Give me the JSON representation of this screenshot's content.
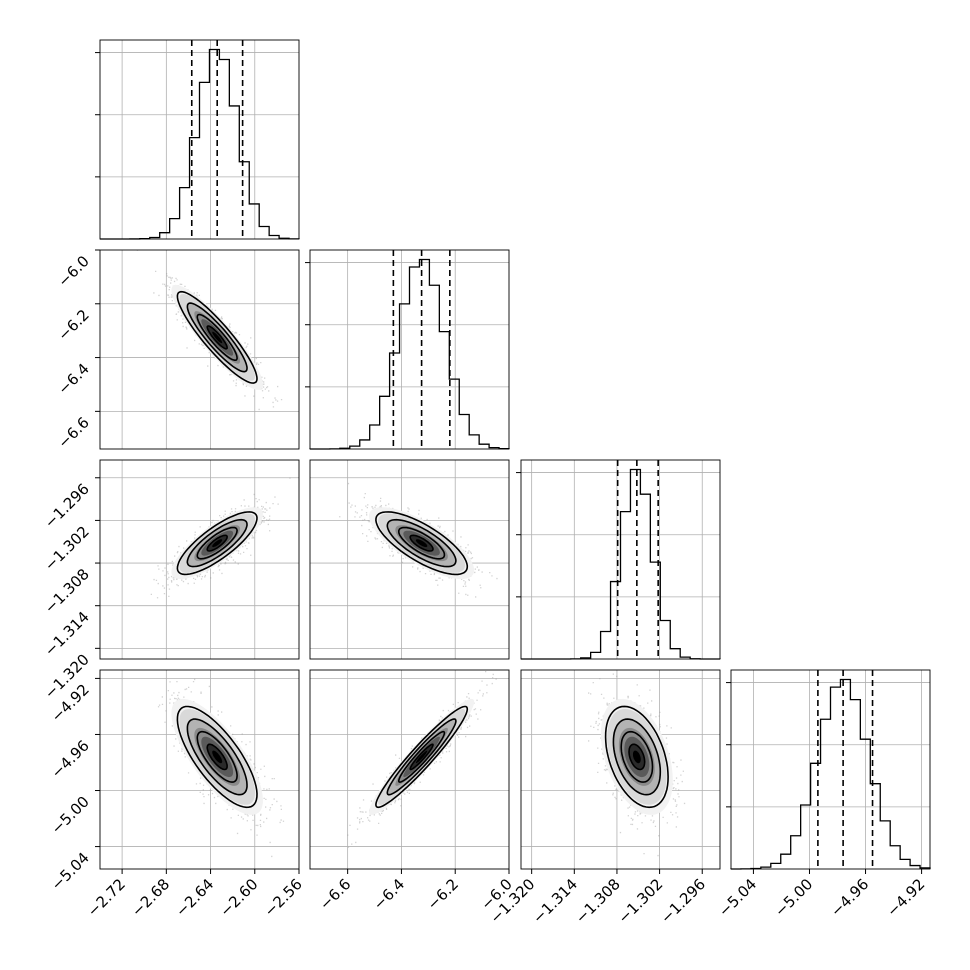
{
  "chart_data": {
    "type": "corner",
    "parameters": [
      {
        "index": 0,
        "label": "",
        "range": [
          -2.74,
          -2.56
        ],
        "ticks": [
          "-2.72",
          "-2.68",
          "-2.64",
          "-2.60",
          "-2.56"
        ],
        "tick_values": [
          -2.72,
          -2.68,
          -2.64,
          -2.6,
          -2.56
        ],
        "mean": -2.634,
        "sd": 0.018,
        "quantiles": [
          -2.657,
          -2.634,
          -2.611
        ]
      },
      {
        "index": 1,
        "label": "",
        "range": [
          -6.74,
          -6.0
        ],
        "ticks": [
          "-6.6",
          "-6.4",
          "-6.2",
          "-6.0"
        ],
        "tick_values": [
          -6.6,
          -6.4,
          -6.2,
          -6.0
        ],
        "mean": -6.325,
        "sd": 0.085,
        "quantiles": [
          -6.43,
          -6.325,
          -6.22
        ]
      },
      {
        "index": 2,
        "label": "",
        "range": [
          -1.3215,
          -1.2935
        ],
        "ticks": [
          "-1.320",
          "-1.314",
          "-1.308",
          "-1.302",
          "-1.296"
        ],
        "tick_values": [
          -1.32,
          -1.314,
          -1.308,
          -1.302,
          -1.296
        ],
        "mean": -1.3052,
        "sd": 0.0022,
        "quantiles": [
          -1.3079,
          -1.3052,
          -1.3022
        ]
      },
      {
        "index": 3,
        "label": "",
        "range": [
          -5.056,
          -4.914
        ],
        "ticks": [
          "-5.04",
          "-5.00",
          "-4.96",
          "-4.92"
        ],
        "tick_values": [
          -5.04,
          -5.0,
          -4.96,
          -4.92
        ],
        "mean": -4.976,
        "sd": 0.018,
        "quantiles": [
          -4.994,
          -4.976,
          -4.955
        ]
      }
    ],
    "correlations": [
      {
        "pair": [
          0,
          1
        ],
        "rho": -0.9
      },
      {
        "pair": [
          0,
          2
        ],
        "rho": 0.8
      },
      {
        "pair": [
          1,
          2
        ],
        "rho": -0.75
      },
      {
        "pair": [
          0,
          3
        ],
        "rho": -0.75
      },
      {
        "pair": [
          1,
          3
        ],
        "rho": 0.95
      },
      {
        "pair": [
          2,
          3
        ],
        "rho": -0.4
      }
    ],
    "histogram_bins": 20,
    "contour_levels_sigma": [
      0.5,
      1.0,
      1.5,
      2.0
    ],
    "grid": true,
    "quantile_line_style": "dashed",
    "colors": {
      "line": "#000000",
      "points": "#9e9e9e",
      "grid": "#b0b0b0",
      "background": "#ffffff"
    }
  }
}
